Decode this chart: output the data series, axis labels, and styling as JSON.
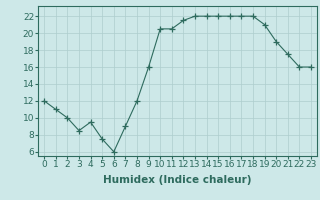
{
  "x": [
    0,
    1,
    2,
    3,
    4,
    5,
    6,
    7,
    8,
    9,
    10,
    11,
    12,
    13,
    14,
    15,
    16,
    17,
    18,
    19,
    20,
    21,
    22,
    23
  ],
  "y": [
    12,
    11,
    10,
    8.5,
    9.5,
    7.5,
    6,
    9,
    12,
    16,
    20.5,
    20.5,
    21.5,
    22,
    22,
    22,
    22,
    22,
    22,
    21,
    19,
    17.5,
    16,
    16
  ],
  "line_color": "#2e6b5e",
  "marker": "+",
  "marker_size": 4,
  "xlabel": "Humidex (Indice chaleur)",
  "xlabel_fontsize": 7.5,
  "xlabel_color": "#2e6b5e",
  "ylabel_ticks": [
    6,
    8,
    10,
    12,
    14,
    16,
    18,
    20,
    22
  ],
  "xlim": [
    -0.5,
    23.5
  ],
  "ylim": [
    5.5,
    23.2
  ],
  "background_color": "#cde8e8",
  "grid_color": "#aecece",
  "tick_color": "#2e6b5e",
  "tick_fontsize": 6.5,
  "title": ""
}
